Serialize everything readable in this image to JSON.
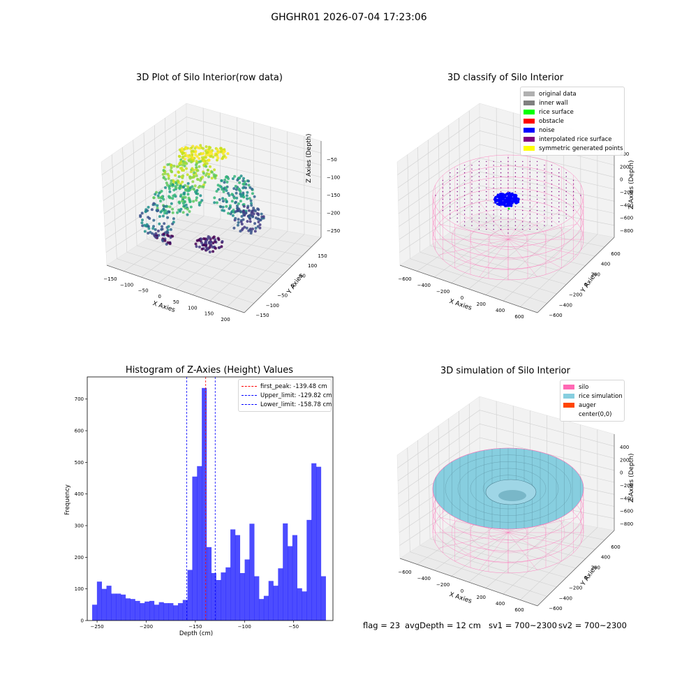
{
  "suptitle": "GHGHR01 2026-07-04 17:23:06",
  "panels": {
    "raw": {
      "title": "3D Plot of Silo Interior(row data)",
      "xlabel": "X Axies",
      "ylabel": "Y Axies",
      "zlabel": "Z Axies (Depth)",
      "xticks": [
        "−150",
        "−100",
        "−50",
        "0",
        "50",
        "100",
        "150",
        "200"
      ],
      "yticks": [
        "150",
        "100",
        "50",
        "0",
        "−50",
        "−100",
        "−150"
      ],
      "zticks": [
        "−50",
        "−100",
        "−150",
        "−200",
        "−250"
      ]
    },
    "classify": {
      "title": "3D classify of Silo Interior",
      "xlabel": "X Axies",
      "ylabel": "Y Axies",
      "zlabel": "Z Axies (Depth)",
      "xticks": [
        "−600",
        "−400",
        "−200",
        "0",
        "200",
        "400",
        "600"
      ],
      "yticks": [
        "600",
        "400",
        "200",
        "0",
        "−200",
        "−400",
        "−600"
      ],
      "zticks": [
        "400",
        "200",
        "0",
        "−200",
        "−400",
        "−600",
        "−800"
      ],
      "legend": [
        {
          "label": "original data",
          "color": "#b0b0b0"
        },
        {
          "label": "inner wall",
          "color": "#808080"
        },
        {
          "label": "rice surface",
          "color": "#00ff00"
        },
        {
          "label": "obstacle",
          "color": "#ff0000"
        },
        {
          "label": "noise",
          "color": "#0000ff"
        },
        {
          "label": "interpolated rice surface",
          "color": "#800080"
        },
        {
          "label": "symmetric generated points",
          "color": "#ffff00"
        }
      ]
    },
    "simulation": {
      "title": "3D simulation of Silo Interior",
      "xlabel": "X Axies",
      "ylabel": "Y Axies",
      "zlabel": "Z Axies (Depth)",
      "xticks": [
        "−600",
        "−400",
        "−200",
        "0",
        "200",
        "400",
        "600"
      ],
      "yticks": [
        "600",
        "400",
        "200",
        "0",
        "−200",
        "−400",
        "−600"
      ],
      "zticks": [
        "400",
        "200",
        "0",
        "−200",
        "−400",
        "−600",
        "−800"
      ],
      "legend": [
        {
          "label": "silo",
          "color": "#ff69b4"
        },
        {
          "label": "rice simulation",
          "color": "#87cedf"
        },
        {
          "label": "auger",
          "color": "#ff4500"
        },
        {
          "label": "center(0,0)",
          "color": "#ffffff"
        }
      ]
    }
  },
  "chart_data": {
    "type": "bar",
    "title": "Histogram of Z-Axies (Height) Values",
    "xlabel": "Depth (cm)",
    "ylabel": "Frequency",
    "bar_color": "#0000ff",
    "bin_start": -255,
    "bin_width": 4.85,
    "values": [
      50,
      123,
      100,
      110,
      85,
      85,
      82,
      70,
      68,
      62,
      55,
      60,
      62,
      50,
      58,
      55,
      55,
      48,
      55,
      65,
      160,
      455,
      488,
      735,
      232,
      150,
      128,
      152,
      168,
      288,
      270,
      150,
      193,
      306,
      140,
      68,
      78,
      125,
      110,
      165,
      307,
      235,
      270,
      102,
      92,
      318,
      497,
      486,
      140
    ],
    "xlim": [
      -260,
      -10
    ],
    "ylim": [
      0,
      770
    ],
    "xticks": [
      -250,
      -200,
      -150,
      -100,
      -50
    ],
    "xtick_labels": [
      "−250",
      "−200",
      "−150",
      "−100",
      "−50"
    ],
    "yticks": [
      0,
      100,
      200,
      300,
      400,
      500,
      600,
      700
    ],
    "ytick_labels": [
      "0",
      "100",
      "200",
      "300",
      "400",
      "500",
      "600",
      "700"
    ],
    "vlines": [
      {
        "label": "first_peak: -139.48 cm",
        "x": -139.48,
        "color": "#ff0000"
      },
      {
        "label": "Upper_limit: -129.82 cm",
        "x": -129.82,
        "color": "#0000ff"
      },
      {
        "label": "Lower_limit: -158.78 cm",
        "x": -158.78,
        "color": "#0000ff"
      }
    ],
    "legend_position": "upper right"
  },
  "footer": {
    "flag": "flag = 23",
    "avg": "avgDepth = 12 cm",
    "sv1": "sv1 = 700~2300",
    "sv2": "sv2 = 700~2300"
  }
}
